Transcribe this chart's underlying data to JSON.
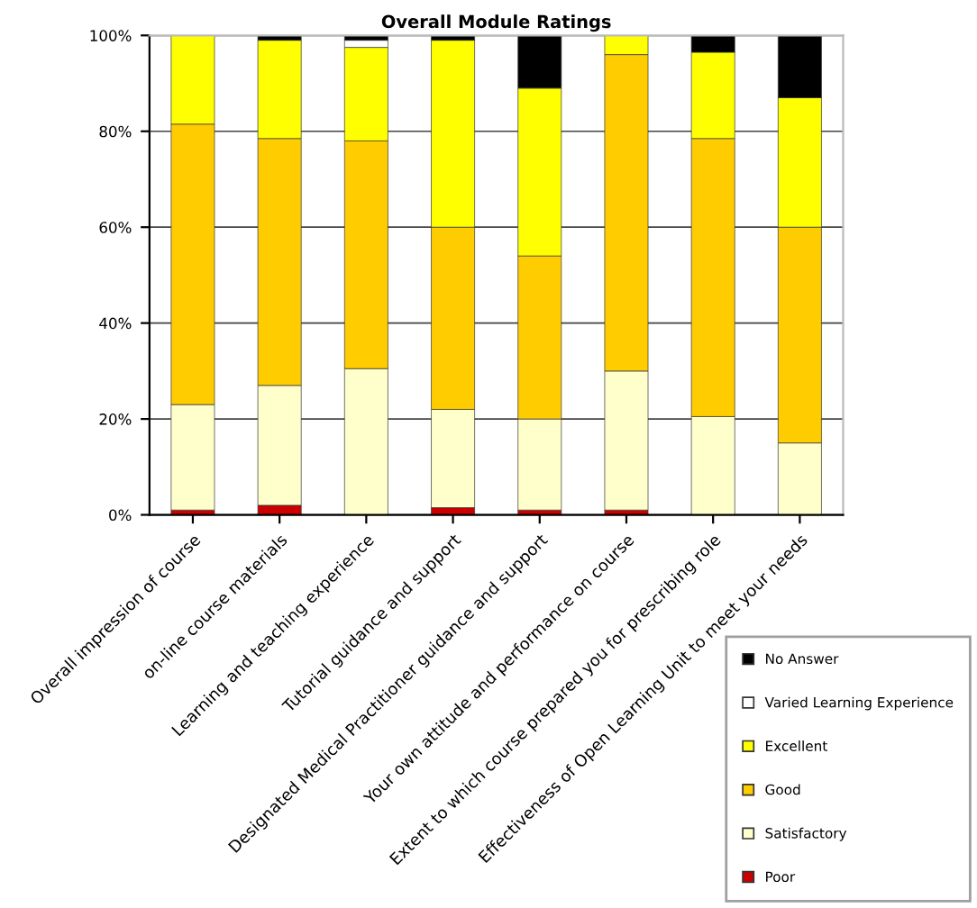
{
  "chart_data": {
    "type": "bar",
    "stacked": true,
    "title": "Overall Module Ratings",
    "categories": [
      "Overall impression of course",
      "on-line course materials",
      "Learning and teaching experience",
      "Tutorial guidance and support",
      "Designated Medical Practitioner guidance and support",
      "Your own attitude and performance on course",
      "Extent to which course prepared you for prescribing role",
      "Effectiveness of Open Learning Unit to meet your needs"
    ],
    "series": [
      {
        "name": "Poor",
        "color": "#cc0000",
        "values": [
          1,
          2,
          0,
          1.5,
          1,
          1,
          0,
          0
        ]
      },
      {
        "name": "Satisfactory",
        "color": "#ffffcc",
        "values": [
          22,
          25,
          30.5,
          20.5,
          19,
          29,
          20.5,
          15
        ]
      },
      {
        "name": "Good",
        "color": "#ffcc00",
        "values": [
          58.5,
          51.5,
          47.5,
          38,
          34,
          66,
          58,
          45
        ]
      },
      {
        "name": "Excellent",
        "color": "#ffff00",
        "values": [
          18.5,
          20.5,
          19.5,
          39,
          35,
          4,
          18,
          27
        ]
      },
      {
        "name": "Varied Learning Experience",
        "color": "#ffffff",
        "values": [
          0,
          0,
          1.5,
          0,
          0,
          0,
          0,
          0
        ]
      },
      {
        "name": "No Answer",
        "color": "#000000",
        "values": [
          0,
          1,
          1,
          1,
          11,
          0,
          3.5,
          13
        ]
      }
    ],
    "ylim": [
      0,
      100
    ],
    "yticks": [
      {
        "value": 0,
        "label": "0%"
      },
      {
        "value": 20,
        "label": "20%"
      },
      {
        "value": 40,
        "label": "40%"
      },
      {
        "value": 60,
        "label": "60%"
      },
      {
        "value": 80,
        "label": "80%"
      },
      {
        "value": 100,
        "label": "100%"
      }
    ],
    "grid": "y",
    "legend": "bottom right"
  }
}
